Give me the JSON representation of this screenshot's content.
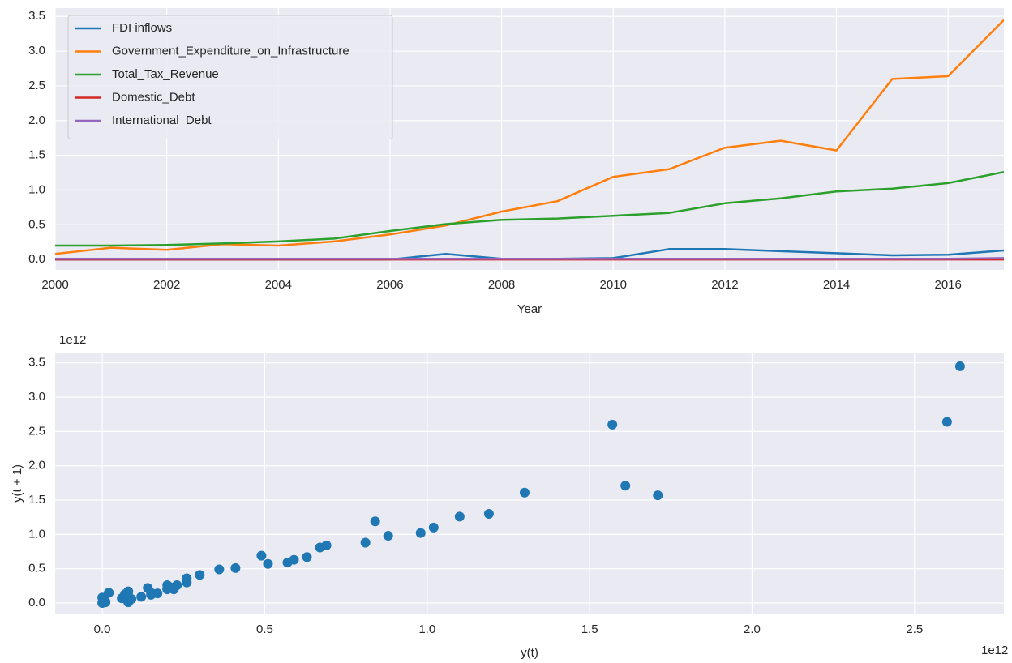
{
  "chart_data": [
    {
      "type": "line",
      "xlabel": "Year",
      "x": [
        2000,
        2001,
        2002,
        2003,
        2004,
        2005,
        2006,
        2007,
        2008,
        2009,
        2010,
        2011,
        2012,
        2013,
        2014,
        2015,
        2016,
        2017
      ],
      "series": [
        {
          "name": "FDI inflows",
          "color": "#1f77b4",
          "values": [
            0,
            0,
            0,
            0,
            0,
            0,
            0,
            0.08,
            0.01,
            0.01,
            0.02,
            0.15,
            0.15,
            0.12,
            0.09,
            0.06,
            0.07,
            0.13
          ]
        },
        {
          "name": "Government_Expenditure_on_Infrastructure",
          "color": "#ff7f0e",
          "values": [
            0.08,
            0.17,
            0.14,
            0.22,
            0.2,
            0.26,
            0.36,
            0.49,
            0.69,
            0.84,
            1.19,
            1.3,
            1.61,
            1.71,
            1.57,
            2.6,
            2.64,
            3.45
          ]
        },
        {
          "name": "Total_Tax_Revenue",
          "color": "#2ca02c",
          "values": [
            0.2,
            0.2,
            0.21,
            0.23,
            0.26,
            0.3,
            0.41,
            0.51,
            0.57,
            0.59,
            0.63,
            0.67,
            0.81,
            0.88,
            0.98,
            1.02,
            1.1,
            1.26
          ]
        },
        {
          "name": "Domestic_Debt",
          "color": "#d62728",
          "values": [
            0,
            0,
            0,
            0,
            0,
            0,
            0,
            0,
            0,
            0,
            0,
            0,
            0,
            0,
            0,
            0,
            0,
            0
          ]
        },
        {
          "name": "International_Debt",
          "color": "#9467bd",
          "values": [
            0.01,
            0.01,
            0.01,
            0.01,
            0.01,
            0.01,
            0.01,
            0.01,
            0.01,
            0.01,
            0.01,
            0.01,
            0.01,
            0.01,
            0.01,
            0.01,
            0.01,
            0.02
          ]
        }
      ],
      "xlim": [
        2000,
        2017
      ],
      "xticks": [
        2000,
        2002,
        2004,
        2006,
        2008,
        2010,
        2012,
        2014,
        2016
      ],
      "ylim": [
        -0.15,
        3.62
      ],
      "yticks": [
        {
          "value": 0,
          "label": "0.0"
        },
        0.5,
        {
          "value": 1,
          "label": "1.0"
        },
        1.5,
        {
          "value": 2,
          "label": "2.0"
        },
        2.5,
        {
          "value": 3,
          "label": "3.0"
        },
        3.5
      ],
      "grid": true,
      "legend": "upper left"
    },
    {
      "type": "scatter",
      "xlabel": "y(t)",
      "ylabel": "y(t + 1)",
      "x_offset_label": "1e12",
      "y_offset_label": "1e12",
      "color": "#1f77b4",
      "x": [
        0.08,
        0.17,
        0.14,
        0.22,
        0.2,
        0.26,
        0.36,
        0.49,
        0.69,
        0.84,
        1.19,
        1.3,
        1.61,
        1.71,
        1.57,
        2.6,
        2.64,
        0.2,
        0.2,
        0.21,
        0.23,
        0.26,
        0.3,
        0.41,
        0.51,
        0.57,
        0.59,
        0.63,
        0.67,
        0.81,
        0.88,
        0.98,
        1.02,
        1.1,
        0,
        0,
        0.08,
        0.01,
        0.01,
        0.02,
        0.15,
        0.15,
        0.12,
        0.09,
        0.06,
        0.07,
        0.08,
        0.02
      ],
      "y": [
        0.17,
        0.14,
        0.22,
        0.2,
        0.26,
        0.36,
        0.49,
        0.69,
        0.84,
        1.19,
        1.3,
        1.61,
        1.71,
        1.57,
        2.6,
        2.64,
        3.45,
        0.2,
        0.21,
        0.23,
        0.26,
        0.3,
        0.41,
        0.51,
        0.57,
        0.59,
        0.63,
        0.67,
        0.81,
        0.88,
        0.98,
        1.02,
        1.1,
        1.26,
        0,
        0.08,
        0.01,
        0.01,
        0.02,
        0.15,
        0.15,
        0.12,
        0.09,
        0.06,
        0.07,
        0.13,
        0.16,
        0.15
      ],
      "xlim": [
        -0.145,
        2.775
      ],
      "xticks": [
        {
          "value": 0,
          "label": "0.0"
        },
        0.5,
        {
          "value": 1,
          "label": "1.0"
        },
        1.5,
        {
          "value": 2,
          "label": "2.0"
        },
        2.5
      ],
      "ylim": [
        -0.165,
        3.65
      ],
      "yticks": [
        {
          "value": 0,
          "label": "0.0"
        },
        0.5,
        {
          "value": 1,
          "label": "1.0"
        },
        1.5,
        {
          "value": 2,
          "label": "2.0"
        },
        2.5,
        {
          "value": 3,
          "label": "3.0"
        },
        3.5
      ],
      "grid": true
    }
  ]
}
